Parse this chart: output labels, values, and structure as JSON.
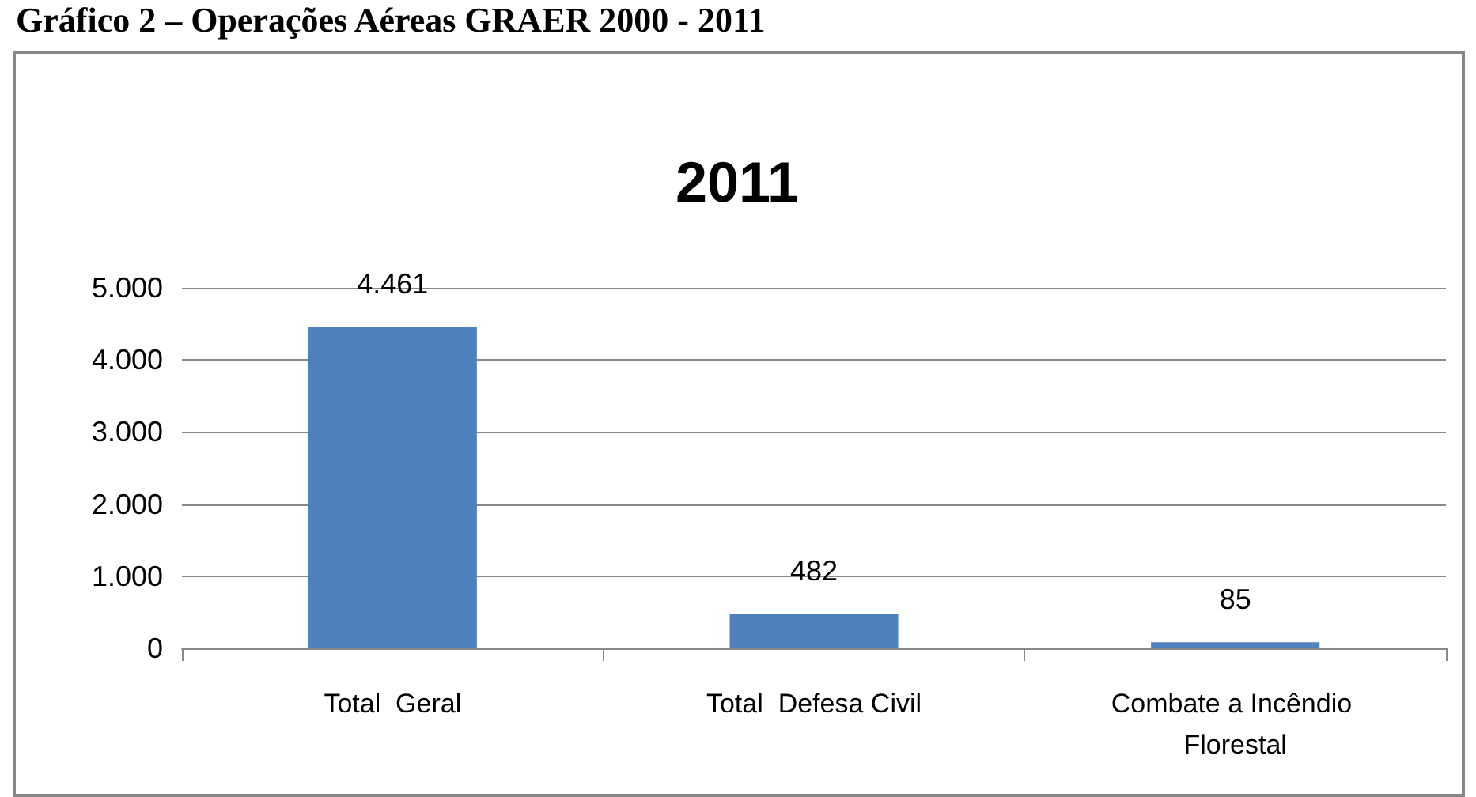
{
  "chart_data": {
    "type": "bar",
    "title": "2011",
    "annotations": [
      "Gráfico 2 – Operações Aéreas GRAER 2000 - 2011"
    ],
    "categories": [
      "Total  Geral",
      "Total  Defesa Civil",
      "Combate a Incêndio Florestal"
    ],
    "values": [
      4461,
      482,
      85
    ],
    "value_labels": [
      "4.461",
      "482",
      "85"
    ],
    "color": "#4f81bd",
    "ylim": [
      0,
      5000
    ],
    "yticks": [
      0,
      {
        "value": 1000,
        "label": "1.000"
      },
      {
        "value": 2000,
        "label": "2.000"
      },
      {
        "value": 3000,
        "label": "3.000"
      },
      {
        "value": 4000,
        "label": "4.000"
      },
      {
        "value": 5000,
        "label": "5.000"
      }
    ],
    "grid": "y"
  }
}
